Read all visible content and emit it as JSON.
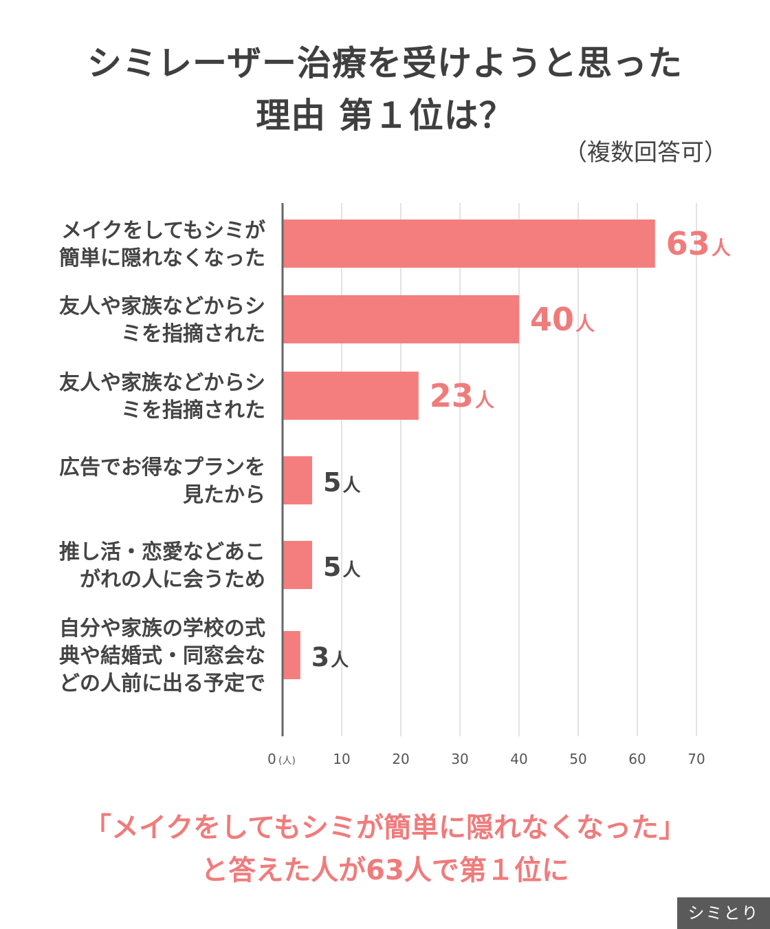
{
  "title_line_1": "シミレーザー治療を受けようと思った",
  "title_line_2": "理由 第１位は？",
  "subtitle": "（複数回答可）",
  "footer_line_1": "「メイクをしてもシミが簡単に隠れなくなった」",
  "footer_line_2": "と答えた人が63人で第１位に",
  "brand": "シミとり",
  "colors": {
    "bar": "#f47e7e",
    "highlight_label": "#f07b7b",
    "normal_label": "#444444",
    "grid": "#e3e3e3",
    "axis": "#666666"
  },
  "chart_data": {
    "type": "bar",
    "orientation": "horizontal",
    "unit": "人",
    "axis_unit_label": "(人)",
    "xlim": [
      0,
      70
    ],
    "ticks": [
      0,
      10,
      20,
      30,
      40,
      50,
      60,
      70
    ],
    "grid": true,
    "categories": [
      [
        "メイクをしてもシミが",
        "簡単に隠れなくなった"
      ],
      [
        "友人や家族などからシ",
        "ミを指摘された"
      ],
      [
        "友人や家族などからシ",
        "ミを指摘された"
      ],
      [
        "広告でお得なプランを",
        "見たから"
      ],
      [
        "推し活・恋愛などあこ",
        "がれの人に会うため"
      ],
      [
        "自分や家族の学校の式",
        "典や結婚式・同窓会な",
        "どの人前に出る予定で"
      ]
    ],
    "values": [
      63,
      40,
      23,
      5,
      5,
      3
    ],
    "highlight": [
      true,
      true,
      true,
      false,
      false,
      false
    ]
  }
}
